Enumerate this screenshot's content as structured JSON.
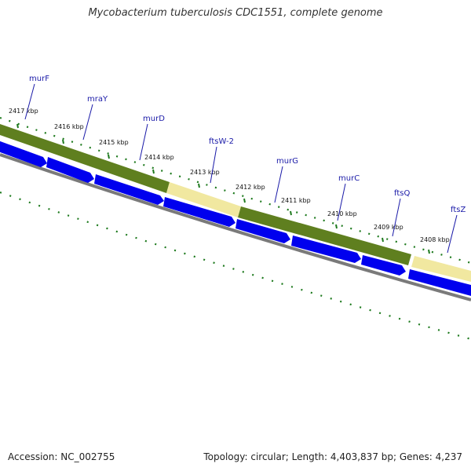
{
  "title": "Mycobacterium tuberculosis CDC1551, complete genome",
  "accession": "Accession: NC_002755",
  "summary": "Topology: circular; Length: 4,403,837 bp; Genes: 4,237",
  "colors": {
    "gene_label": "#1a1aa8",
    "gene_arrow": "#0000ee",
    "olive_band": "#5f7f1f",
    "pale_band": "#f1e8a0",
    "backbone": "#7a7a7a",
    "tick": "#1e7a1e"
  },
  "ticks": [
    {
      "label": "2417 kbp"
    },
    {
      "label": "2416 kbp"
    },
    {
      "label": "2415 kbp"
    },
    {
      "label": "2414 kbp"
    },
    {
      "label": "2413 kbp"
    },
    {
      "label": "2412 kbp"
    },
    {
      "label": "2411 kbp"
    },
    {
      "label": "2410 kbp"
    },
    {
      "label": "2409 kbp"
    },
    {
      "label": "2408 kbp"
    }
  ],
  "genes": [
    {
      "name": "murF"
    },
    {
      "name": "mraY"
    },
    {
      "name": "murD"
    },
    {
      "name": "ftsW-2"
    },
    {
      "name": "murG"
    },
    {
      "name": "murC"
    },
    {
      "name": "ftsQ"
    },
    {
      "name": "ftsZ"
    }
  ]
}
